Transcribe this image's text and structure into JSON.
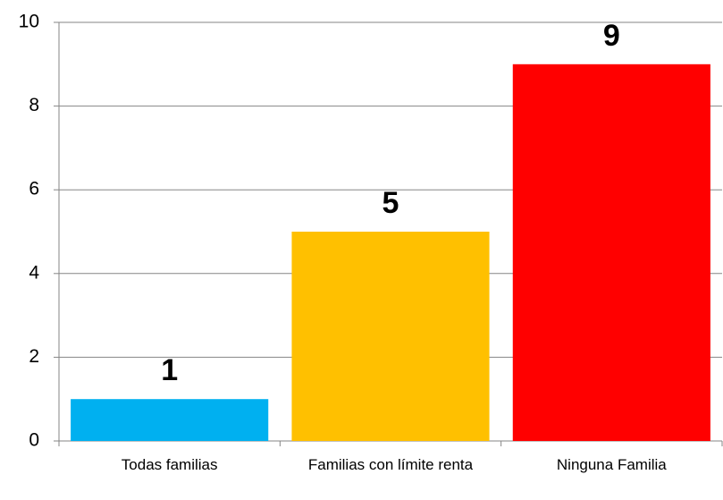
{
  "chart_data": {
    "type": "bar",
    "categories": [
      "Todas familias",
      "Familias con límite renta",
      "Ninguna Familia"
    ],
    "values": [
      1,
      5,
      9
    ],
    "colors": [
      "#00b0f0",
      "#ffc000",
      "#ff0000"
    ],
    "ylim": [
      0,
      10
    ],
    "yticks": [
      0,
      2,
      4,
      6,
      8,
      10
    ],
    "grid": true
  }
}
